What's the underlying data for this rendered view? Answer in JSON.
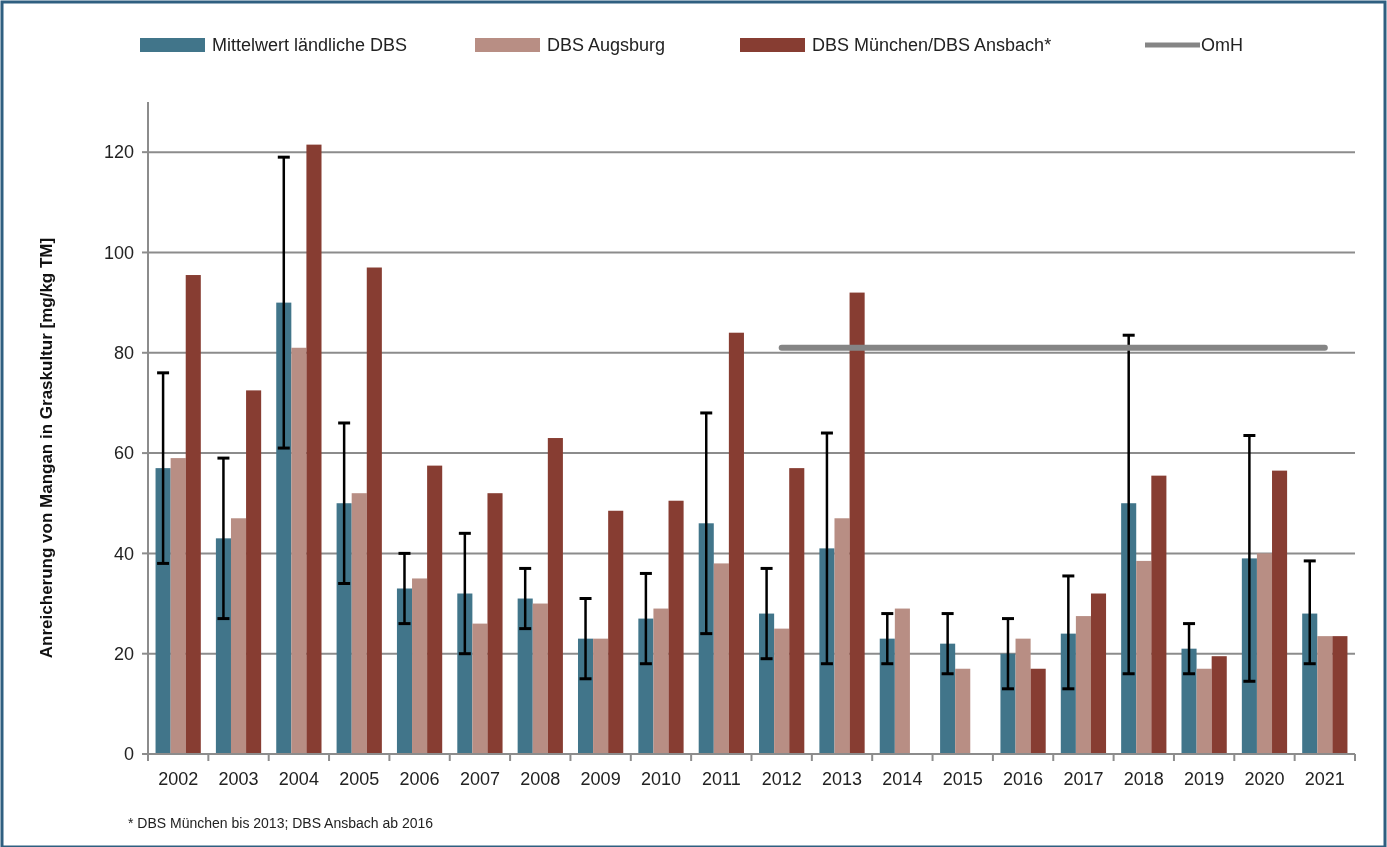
{
  "chart_data": {
    "type": "bar",
    "ylabel": "Anreicherung von Mangan in Graskultur  [mg/kg TM]",
    "categories": [
      "2002",
      "2003",
      "2004",
      "2005",
      "2006",
      "2007",
      "2008",
      "2009",
      "2010",
      "2011",
      "2012",
      "2013",
      "2014",
      "2015",
      "2016",
      "2017",
      "2018",
      "2019",
      "2020",
      "2021"
    ],
    "series": [
      {
        "name": "Mittelwert ländliche DBS",
        "color": "#41758a",
        "values": [
          57,
          43,
          90,
          50,
          33,
          32,
          31,
          23,
          27,
          46,
          28,
          41,
          23,
          22,
          20,
          24,
          50,
          21,
          39,
          28
        ],
        "errors": [
          [
            38,
            76
          ],
          [
            27,
            59
          ],
          [
            61,
            119
          ],
          [
            34,
            66
          ],
          [
            26,
            40
          ],
          [
            20,
            44
          ],
          [
            25,
            37
          ],
          [
            15,
            31
          ],
          [
            18,
            36
          ],
          [
            24,
            68
          ],
          [
            19,
            37
          ],
          [
            18,
            64
          ],
          [
            18,
            28
          ],
          [
            16,
            28
          ],
          [
            13,
            27
          ],
          [
            13,
            35.5
          ],
          [
            16,
            83.5
          ],
          [
            16,
            26
          ],
          [
            14.5,
            63.5
          ],
          [
            18,
            38.5
          ]
        ]
      },
      {
        "name": "DBS Augsburg",
        "color": "#b88e84",
        "values": [
          59,
          47,
          81,
          52,
          35,
          26,
          30,
          23,
          29,
          38,
          25,
          47,
          29,
          17,
          23,
          27.5,
          38.5,
          17,
          40,
          23.5
        ]
      },
      {
        "name": "DBS München/DBS Ansbach*",
        "color": "#873d32",
        "values": [
          95.5,
          72.5,
          121.5,
          97,
          57.5,
          52,
          63,
          48.5,
          50.5,
          84,
          57,
          92,
          null,
          null,
          17,
          32,
          55.5,
          19.5,
          56.5,
          23.5
        ]
      },
      {
        "name": "OmH",
        "type": "line",
        "color": "#858585",
        "values": [
          null,
          null,
          null,
          null,
          null,
          null,
          null,
          null,
          null,
          null,
          81,
          81,
          81,
          81,
          81,
          81,
          81,
          81,
          81,
          81
        ]
      }
    ],
    "ylim": [
      0,
      130
    ],
    "yticks": [
      0,
      20,
      40,
      60,
      80,
      100,
      120
    ],
    "grid": "y",
    "legend": "top",
    "annotations": [
      "* DBS München bis 2013; DBS Ansbach ab 2016"
    ]
  }
}
